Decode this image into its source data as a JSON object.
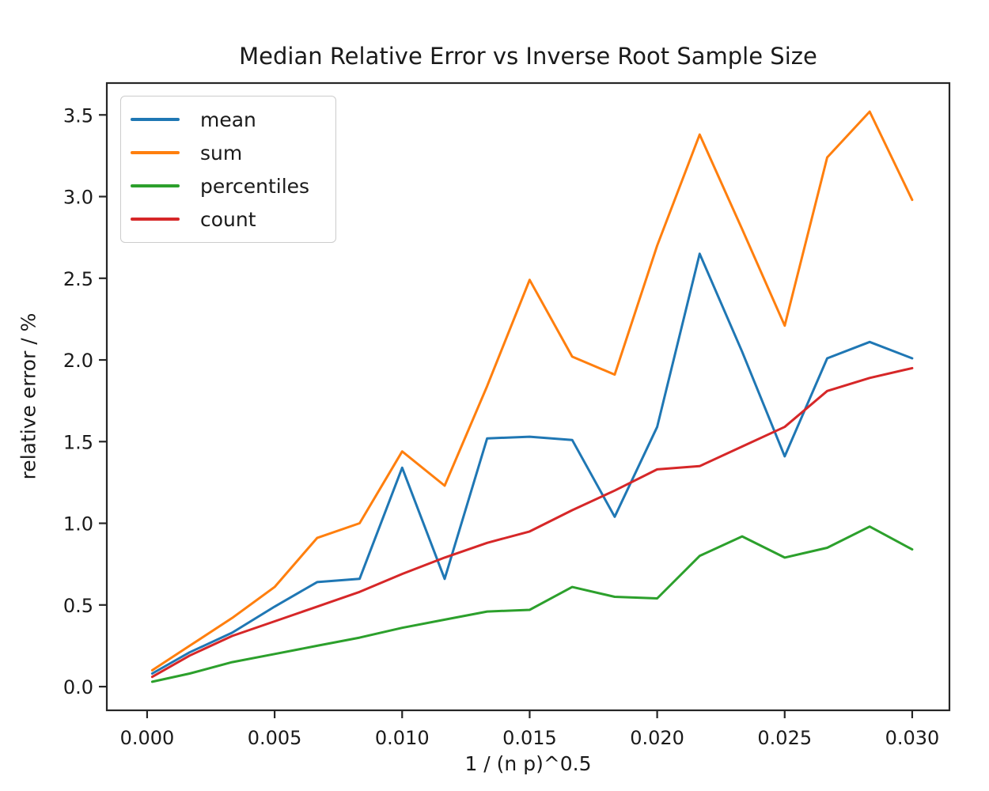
{
  "figure": {
    "background": "#ffffff",
    "text_color": "#1a1a1a",
    "spine_color": "#262626"
  },
  "chart_data": {
    "type": "line",
    "title": "Median Relative Error vs Inverse Root Sample Size",
    "xlabel": "1 / (n p)^0.5",
    "ylabel": "relative error / %",
    "grid": false,
    "legend_position": "upper left",
    "xlim": [
      -0.00158,
      0.03146
    ],
    "ylim": [
      -0.145,
      3.695
    ],
    "x_ticks": [
      0.0,
      0.005,
      0.01,
      0.015,
      0.02,
      0.025,
      0.03
    ],
    "x_tick_labels": [
      "0.000",
      "0.005",
      "0.010",
      "0.015",
      "0.020",
      "0.025",
      "0.030"
    ],
    "y_ticks": [
      0.0,
      0.5,
      1.0,
      1.5,
      2.0,
      2.5,
      3.0,
      3.5
    ],
    "y_tick_labels": [
      "0.0",
      "0.5",
      "1.0",
      "1.5",
      "2.0",
      "2.5",
      "3.0",
      "3.5"
    ],
    "x": [
      0.0002,
      0.001667,
      0.003333,
      0.005,
      0.006667,
      0.008333,
      0.01,
      0.011667,
      0.013333,
      0.015,
      0.016667,
      0.018333,
      0.02,
      0.021667,
      0.023333,
      0.025,
      0.026667,
      0.028333,
      0.03
    ],
    "series": [
      {
        "name": "mean",
        "color": "#1f77b4",
        "values": [
          0.08,
          0.21,
          0.33,
          0.49,
          0.64,
          0.66,
          1.34,
          0.66,
          1.52,
          1.53,
          1.51,
          1.04,
          1.59,
          2.65,
          2.05,
          1.41,
          2.01,
          2.11,
          2.01
        ]
      },
      {
        "name": "sum",
        "color": "#ff7f0e",
        "values": [
          0.1,
          0.25,
          0.42,
          0.61,
          0.91,
          1.0,
          1.44,
          1.23,
          1.84,
          2.49,
          2.02,
          1.91,
          2.7,
          3.38,
          2.8,
          2.21,
          3.24,
          3.52,
          2.98
        ]
      },
      {
        "name": "percentiles",
        "color": "#2ca02c",
        "values": [
          0.03,
          0.08,
          0.15,
          0.2,
          0.25,
          0.3,
          0.36,
          0.41,
          0.46,
          0.47,
          0.61,
          0.55,
          0.54,
          0.8,
          0.92,
          0.79,
          0.85,
          0.98,
          0.84
        ]
      },
      {
        "name": "count",
        "color": "#d62728",
        "values": [
          0.06,
          0.19,
          0.31,
          0.4,
          0.49,
          0.58,
          0.69,
          0.79,
          0.88,
          0.95,
          1.08,
          1.2,
          1.33,
          1.35,
          1.47,
          1.59,
          1.81,
          1.89,
          1.95
        ]
      }
    ]
  }
}
